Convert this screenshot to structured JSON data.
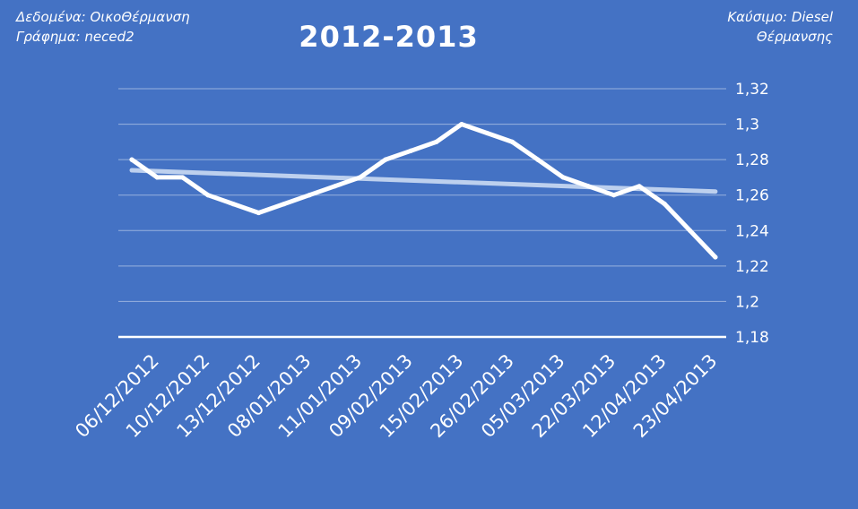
{
  "header": {
    "left_lines": [
      "Δεδομένα: ΟικοΘέρμανση",
      "Γράφημα: neced2"
    ],
    "right_lines": [
      "Καύσιμο: Diesel",
      "Θέρμανσης"
    ]
  },
  "chart_data": {
    "type": "line",
    "title": "2012-2013",
    "xlabel": "",
    "ylabel": "",
    "ylim": [
      1.18,
      1.32
    ],
    "yticks": [
      "1,18",
      "1,2",
      "1,22",
      "1,24",
      "1,26",
      "1,28",
      "1,3",
      "1,32"
    ],
    "grid": true,
    "y_axis_position": "right",
    "trendline": {
      "start": 1.274,
      "end": 1.262
    },
    "x_labels": [
      "06/12/2012",
      "10/12/2012",
      "13/12/2012",
      "08/01/2013",
      "11/01/2013",
      "09/02/2013",
      "15/02/2013",
      "26/02/2013",
      "05/03/2013",
      "22/03/2013",
      "12/04/2013",
      "23/04/2013"
    ],
    "series": [
      {
        "values": [
          1.28,
          1.27,
          1.27,
          1.26,
          1.255,
          1.25,
          1.255,
          1.26,
          1.265,
          1.27,
          1.28,
          1.285,
          1.29,
          1.3,
          1.295,
          1.29,
          1.28,
          1.27,
          1.265,
          1.26,
          1.265,
          1.255,
          1.24,
          1.225
        ]
      }
    ],
    "colors": {
      "background": "#4472C4",
      "line": "#ffffff",
      "trend": "#BDD0EE"
    }
  }
}
